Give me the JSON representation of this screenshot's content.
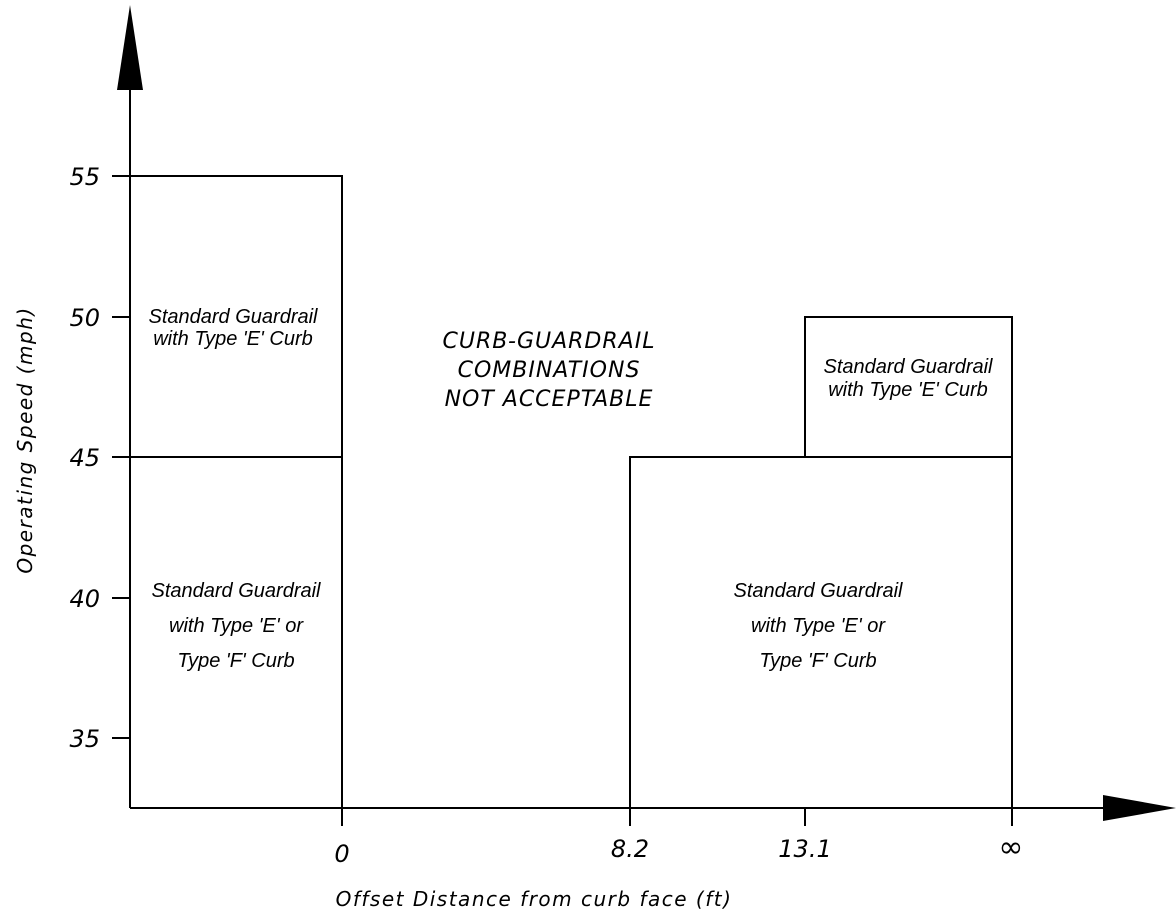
{
  "axes": {
    "y_title": "Operating Speed (mph)",
    "x_title": "Offset Distance from curb face (ft)",
    "y_ticks": [
      "55",
      "50",
      "45",
      "40",
      "35"
    ],
    "x_ticks": [
      "0",
      "8.2",
      "13.1"
    ],
    "x_infinity": "∞"
  },
  "zones": {
    "top_left": [
      "Standard Guardrail",
      "with Type 'E' Curb"
    ],
    "bottom_left": [
      "Standard Guardrail",
      "with Type 'E' or",
      "Type 'F' Curb"
    ],
    "not_acceptable": [
      "CURB-GUARDRAIL",
      "COMBINATIONS",
      "NOT ACCEPTABLE"
    ],
    "top_right": [
      "Standard Guardrail",
      "with Type 'E' Curb"
    ],
    "bottom_right": [
      "Standard Guardrail",
      "with Type 'E' or",
      "Type 'F' Curb"
    ]
  },
  "icons": {
    "y_arrow": "arrow-up-icon",
    "x_arrow": "arrow-right-icon"
  }
}
